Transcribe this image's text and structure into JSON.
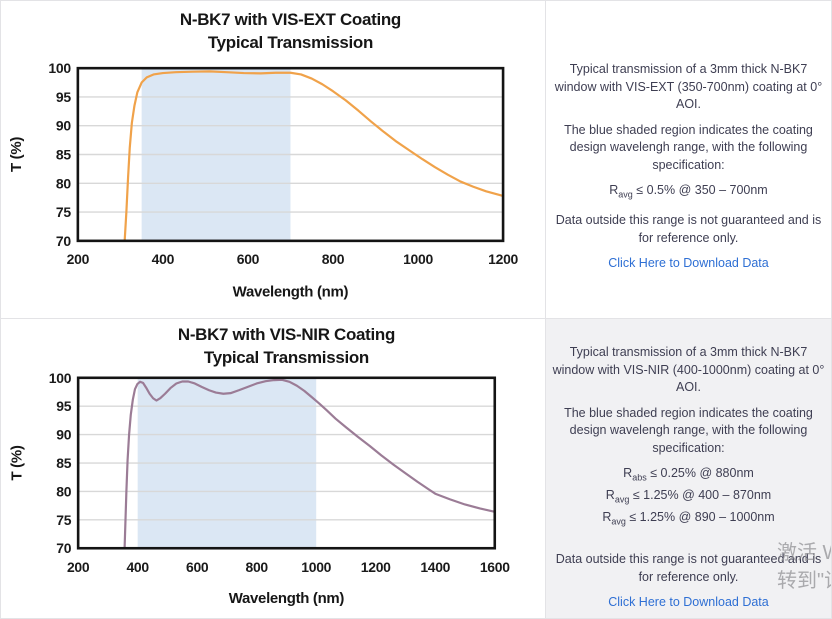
{
  "chart_data": [
    {
      "type": "line",
      "title": [
        "N-BK7 with VIS-EXT Coating",
        "Typical Transmission"
      ],
      "xlabel": "Wavelength (nm)",
      "ylabel": "T (%)",
      "xlim": [
        200,
        1200
      ],
      "ylim": [
        70,
        100
      ],
      "x_ticks": [
        200,
        400,
        600,
        800,
        1000,
        1200
      ],
      "y_ticks": [
        70,
        75,
        80,
        85,
        90,
        95,
        100
      ],
      "grid": "horizontal",
      "legend": "none",
      "shaded_region_nm": [
        350,
        700
      ],
      "line_color": "#f0a24a",
      "shade_color": "#dbe7f4",
      "series": [
        {
          "name": "Transmission",
          "points": [
            [
              310,
              70
            ],
            [
              314,
              75
            ],
            [
              318,
              81
            ],
            [
              322,
              86.2
            ],
            [
              327,
              90.5
            ],
            [
              333,
              93.5
            ],
            [
              340,
              95.8
            ],
            [
              350,
              97.5
            ],
            [
              362,
              98.4
            ],
            [
              378,
              98.9
            ],
            [
              400,
              99.15
            ],
            [
              430,
              99.3
            ],
            [
              470,
              99.4
            ],
            [
              510,
              99.45
            ],
            [
              550,
              99.3
            ],
            [
              590,
              99.15
            ],
            [
              630,
              99.1
            ],
            [
              665,
              99.2
            ],
            [
              700,
              99.2
            ],
            [
              725,
              98.9
            ],
            [
              750,
              98.2
            ],
            [
              775,
              97.2
            ],
            [
              800,
              96.0
            ],
            [
              830,
              94.4
            ],
            [
              860,
              92.6
            ],
            [
              890,
              90.7
            ],
            [
              920,
              88.9
            ],
            [
              950,
              87.2
            ],
            [
              980,
              85.7
            ],
            [
              1010,
              84.2
            ],
            [
              1040,
              82.8
            ],
            [
              1070,
              81.5
            ],
            [
              1100,
              80.3
            ],
            [
              1130,
              79.4
            ],
            [
              1160,
              78.6
            ],
            [
              1200,
              77.8
            ]
          ]
        }
      ]
    },
    {
      "type": "line",
      "title": [
        "N-BK7 with VIS-NIR Coating",
        "Typical Transmission"
      ],
      "xlabel": "Wavelength (nm)",
      "ylabel": "T (%)",
      "xlim": [
        200,
        1600
      ],
      "ylim": [
        70,
        100
      ],
      "x_ticks": [
        200,
        400,
        600,
        800,
        1000,
        1200,
        1400,
        1600
      ],
      "y_ticks": [
        70,
        75,
        80,
        85,
        90,
        95,
        100
      ],
      "grid": "horizontal",
      "legend": "none",
      "shaded_region_nm": [
        400,
        1000
      ],
      "line_color": "#9b7c96",
      "shade_color": "#dbe7f4",
      "series": [
        {
          "name": "Transmission",
          "points": [
            [
              356,
              70
            ],
            [
              359,
              75
            ],
            [
              362,
              80
            ],
            [
              366,
              85.5
            ],
            [
              371,
              90
            ],
            [
              377,
              93.5
            ],
            [
              384,
              96.2
            ],
            [
              391,
              98.0
            ],
            [
              399,
              98.9
            ],
            [
              408,
              99.3
            ],
            [
              418,
              99.1
            ],
            [
              428,
              98.3
            ],
            [
              440,
              97.2
            ],
            [
              452,
              96.4
            ],
            [
              463,
              96.0
            ],
            [
              476,
              96.4
            ],
            [
              492,
              97.2
            ],
            [
              510,
              98.2
            ],
            [
              530,
              99.0
            ],
            [
              550,
              99.35
            ],
            [
              570,
              99.35
            ],
            [
              592,
              99.0
            ],
            [
              615,
              98.4
            ],
            [
              640,
              97.8
            ],
            [
              663,
              97.4
            ],
            [
              688,
              97.2
            ],
            [
              712,
              97.3
            ],
            [
              740,
              97.8
            ],
            [
              770,
              98.4
            ],
            [
              800,
              99.0
            ],
            [
              830,
              99.4
            ],
            [
              858,
              99.6
            ],
            [
              885,
              99.65
            ],
            [
              910,
              99.3
            ],
            [
              935,
              98.6
            ],
            [
              960,
              97.7
            ],
            [
              985,
              96.6
            ],
            [
              1010,
              95.5
            ],
            [
              1035,
              94.3
            ],
            [
              1065,
              92.8
            ],
            [
              1100,
              91.3
            ],
            [
              1140,
              89.6
            ],
            [
              1180,
              88.0
            ],
            [
              1220,
              86.3
            ],
            [
              1260,
              84.7
            ],
            [
              1300,
              83.2
            ],
            [
              1340,
              81.7
            ],
            [
              1380,
              80.3
            ],
            [
              1400,
              79.6
            ],
            [
              1450,
              78.6
            ],
            [
              1500,
              77.7
            ],
            [
              1550,
              77.0
            ],
            [
              1600,
              76.4
            ]
          ]
        }
      ]
    }
  ],
  "panels": [
    {
      "description": "Typical transmission of a 3mm thick N-BK7 window with VIS-EXT (350-700nm) coating at 0° AOI.",
      "shaded_note": "The blue shaded region indicates the coating design wavelengh range, with the following specification:",
      "specs": [
        {
          "symbol": "R",
          "sub": "avg",
          "text": "≤ 0.5% @ 350 – 700nm"
        }
      ],
      "disclaimer": "Data outside this range is not guaranteed and is for reference only.",
      "download_link": "Click Here to Download Data"
    },
    {
      "description": "Typical transmission of a 3mm thick N-BK7 window with VIS-NIR (400-1000nm) coating at 0° AOI.",
      "shaded_note": "The blue shaded region indicates the coating design wavelengh range, with the following specification:",
      "specs": [
        {
          "symbol": "R",
          "sub": "abs",
          "text": "≤ 0.25% @ 880nm"
        },
        {
          "symbol": "R",
          "sub": "avg",
          "text": "≤ 1.25% @ 400 – 870nm"
        },
        {
          "symbol": "R",
          "sub": "avg",
          "text": "≤ 1.25% @ 890 – 1000nm"
        }
      ],
      "disclaimer": "Data outside this range is not guaranteed and is for reference only.",
      "download_link": "Click Here to Download Data"
    }
  ],
  "watermark": {
    "line1": "激活 W",
    "line2": "转到\"设"
  },
  "colors": {
    "vis_ext_curve": "#f0a24a",
    "vis_nir_curve": "#9b7c96",
    "shaded_region": "#dbe7f4",
    "link_blue": "#2e6fd4",
    "panel_text": "#3e3e52",
    "gray_panel_bg": "#f1f1f3",
    "divider": "#e3e3e6",
    "gridline": "#d8d8d8"
  }
}
